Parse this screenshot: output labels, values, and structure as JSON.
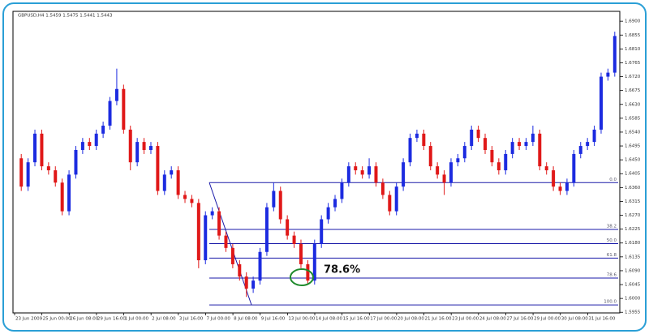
{
  "chart_data": {
    "type": "candlestick",
    "title": "GBPUSD,H4 1.5459 1.5475 1.5441 1.5443",
    "annotation": "78.6%",
    "up_color": "#1c2be0",
    "down_color": "#e01818",
    "fib_color": "#1a1aa8",
    "ylim": [
      1.5953,
      1.6932
    ],
    "yticks": [
      {
        "value": 1.69,
        "label": "1.6900"
      },
      {
        "value": 1.6855,
        "label": "1.6855"
      },
      {
        "value": 1.681,
        "label": "1.6810"
      },
      {
        "value": 1.6765,
        "label": "1.6765"
      },
      {
        "value": 1.672,
        "label": "1.6720"
      },
      {
        "value": 1.6675,
        "label": "1.6675"
      },
      {
        "value": 1.663,
        "label": "1.6630"
      },
      {
        "value": 1.6585,
        "label": "1.6585"
      },
      {
        "value": 1.654,
        "label": "1.6540"
      },
      {
        "value": 1.6495,
        "label": "1.6495"
      },
      {
        "value": 1.645,
        "label": "1.6450"
      },
      {
        "value": 1.6405,
        "label": "1.6405"
      },
      {
        "value": 1.636,
        "label": "1.6360"
      },
      {
        "value": 1.6315,
        "label": "1.6315"
      },
      {
        "value": 1.627,
        "label": "1.6270"
      },
      {
        "value": 1.6225,
        "label": "1.6225"
      },
      {
        "value": 1.618,
        "label": "1.6180"
      },
      {
        "value": 1.6135,
        "label": "1.6135"
      },
      {
        "value": 1.609,
        "label": "1.6090"
      },
      {
        "value": 1.6045,
        "label": "1.6045"
      },
      {
        "value": 1.6,
        "label": "1.6000"
      },
      {
        "value": 1.5955,
        "label": "1.5955"
      }
    ],
    "categories": [
      "23 Jun 2009",
      null,
      null,
      null,
      "25 Jun 00:00",
      null,
      null,
      null,
      "26 Jun 08:00",
      null,
      null,
      null,
      "29 Jun 16:00",
      null,
      null,
      null,
      "1 Jul 00:00",
      null,
      null,
      null,
      "2 Jul 08:00",
      null,
      null,
      null,
      "3 Jul 16:00",
      null,
      null,
      null,
      "7 Jul 00:00",
      null,
      null,
      null,
      "8 Jul 08:00",
      null,
      null,
      null,
      "9 Jul 16:00",
      null,
      null,
      null,
      "13 Jul 00:00",
      null,
      null,
      null,
      "14 Jul 08:00",
      null,
      null,
      null,
      "15 Jul 16:00",
      null,
      null,
      null,
      "17 Jul 00:00",
      null,
      null,
      null,
      "20 Jul 08:00",
      null,
      null,
      null,
      "21 Jul 16:00",
      null,
      null,
      null,
      "23 Jul 00:00",
      null,
      null,
      null,
      "24 Jul 08:00",
      null,
      null,
      null,
      "27 Jul 16:00",
      null,
      null,
      null,
      "29 Jul 00:00",
      null,
      null,
      null,
      "30 Jul 08:00",
      null,
      null,
      null,
      "31 Jul 16:00",
      null,
      null,
      null
    ],
    "open": [
      1.6455,
      1.6363,
      1.6442,
      1.6535,
      1.6429,
      1.6416,
      1.6376,
      1.6283,
      1.6402,
      1.6482,
      1.6508,
      1.6495,
      1.6535,
      1.6561,
      1.6641,
      1.668,
      1.6548,
      1.6442,
      1.6508,
      1.6482,
      1.6495,
      1.6349,
      1.6402,
      1.6416,
      1.6336,
      1.6323,
      1.631,
      1.6124,
      1.627,
      1.6283,
      1.6204,
      1.6164,
      1.6111,
      1.6071,
      1.6032,
      1.6058,
      1.6151,
      1.6296,
      1.6349,
      1.6257,
      1.6204,
      1.6177,
      1.6111,
      1.6058,
      1.6177,
      1.6257,
      1.6296,
      1.6323,
      1.6376,
      1.6429,
      1.6416,
      1.6402,
      1.6429,
      1.6376,
      1.6336,
      1.6283,
      1.6363,
      1.6442,
      1.6521,
      1.6535,
      1.6495,
      1.6429,
      1.6402,
      1.6376,
      1.6442,
      1.6455,
      1.6495,
      1.6548,
      1.6521,
      1.6482,
      1.6442,
      1.6416,
      1.6469,
      1.6508,
      1.6495,
      1.6508,
      1.6535,
      1.6429,
      1.6416,
      1.6363,
      1.6349,
      1.6376,
      1.6469,
      1.6495,
      1.6508,
      1.6548,
      1.672,
      1.6733
    ],
    "high": [
      1.6469,
      1.6455,
      1.6548,
      1.6548,
      1.6442,
      1.6429,
      1.6389,
      1.6416,
      1.6495,
      1.6521,
      1.6521,
      1.6548,
      1.6574,
      1.6654,
      1.6746,
      1.6694,
      1.6561,
      1.6521,
      1.6521,
      1.6508,
      1.6508,
      1.6416,
      1.6429,
      1.6429,
      1.6349,
      1.6336,
      1.6323,
      1.6283,
      1.6296,
      1.6296,
      1.6217,
      1.6177,
      1.6124,
      1.6085,
      1.6071,
      1.6164,
      1.631,
      1.6376,
      1.6363,
      1.627,
      1.6217,
      1.6191,
      1.6124,
      1.6191,
      1.627,
      1.631,
      1.6336,
      1.6389,
      1.6442,
      1.6442,
      1.6429,
      1.6455,
      1.6442,
      1.6389,
      1.6349,
      1.6376,
      1.6455,
      1.6535,
      1.6548,
      1.6548,
      1.6508,
      1.6442,
      1.6416,
      1.6455,
      1.6469,
      1.6508,
      1.6561,
      1.6561,
      1.6535,
      1.6495,
      1.6455,
      1.6482,
      1.6521,
      1.6521,
      1.6521,
      1.6561,
      1.6548,
      1.6442,
      1.6429,
      1.6376,
      1.6389,
      1.6482,
      1.6508,
      1.6521,
      1.6561,
      1.6733,
      1.6746,
      1.6866
    ],
    "low": [
      1.6349,
      1.6349,
      1.6429,
      1.6416,
      1.6402,
      1.6363,
      1.627,
      1.627,
      1.6389,
      1.6469,
      1.6482,
      1.6482,
      1.6521,
      1.6548,
      1.6627,
      1.6535,
      1.6416,
      1.6429,
      1.6469,
      1.6469,
      1.6336,
      1.6336,
      1.6389,
      1.6323,
      1.631,
      1.6296,
      1.6098,
      1.6111,
      1.6257,
      1.6191,
      1.6151,
      1.6098,
      1.6058,
      1.6005,
      1.6018,
      1.6045,
      1.6138,
      1.6283,
      1.6243,
      1.6191,
      1.6164,
      1.6098,
      1.6045,
      1.6045,
      1.6164,
      1.6243,
      1.6283,
      1.631,
      1.6363,
      1.6402,
      1.6389,
      1.6389,
      1.6363,
      1.6323,
      1.627,
      1.627,
      1.6349,
      1.6429,
      1.6508,
      1.6482,
      1.6416,
      1.6389,
      1.6336,
      1.6363,
      1.6429,
      1.6442,
      1.6482,
      1.6508,
      1.6469,
      1.6429,
      1.6402,
      1.6402,
      1.6455,
      1.6482,
      1.6482,
      1.6495,
      1.6416,
      1.6402,
      1.6349,
      1.6336,
      1.6336,
      1.6363,
      1.6455,
      1.6482,
      1.6495,
      1.6535,
      1.6707,
      1.672
    ],
    "close": [
      1.6363,
      1.6442,
      1.6535,
      1.6429,
      1.6416,
      1.6376,
      1.6283,
      1.6402,
      1.6482,
      1.6508,
      1.6495,
      1.6535,
      1.6561,
      1.6641,
      1.668,
      1.6548,
      1.6442,
      1.6508,
      1.6482,
      1.6495,
      1.6349,
      1.6402,
      1.6416,
      1.6336,
      1.6323,
      1.631,
      1.6124,
      1.627,
      1.6283,
      1.6204,
      1.6164,
      1.6111,
      1.6071,
      1.6032,
      1.6058,
      1.6151,
      1.6296,
      1.6349,
      1.6257,
      1.6204,
      1.6177,
      1.6111,
      1.6058,
      1.6177,
      1.6257,
      1.6296,
      1.6323,
      1.6376,
      1.6429,
      1.6416,
      1.6402,
      1.6429,
      1.6376,
      1.6336,
      1.6283,
      1.6363,
      1.6442,
      1.6521,
      1.6535,
      1.6495,
      1.6429,
      1.6402,
      1.6376,
      1.6442,
      1.6455,
      1.6495,
      1.6548,
      1.6521,
      1.6482,
      1.6442,
      1.6416,
      1.6469,
      1.6508,
      1.6495,
      1.6508,
      1.6535,
      1.6429,
      1.6416,
      1.6363,
      1.6349,
      1.6376,
      1.6469,
      1.6495,
      1.6508,
      1.6548,
      1.672,
      1.6733,
      1.6852
    ],
    "fib_levels": [
      {
        "label": "0.0",
        "price": 1.6376
      },
      {
        "label": "38.2",
        "price": 1.6224
      },
      {
        "label": "50.0",
        "price": 1.6178
      },
      {
        "label": "61.8",
        "price": 1.6131
      },
      {
        "label": "78.6",
        "price": 1.6066
      },
      {
        "label": "100.0",
        "price": 1.5979
      }
    ]
  }
}
